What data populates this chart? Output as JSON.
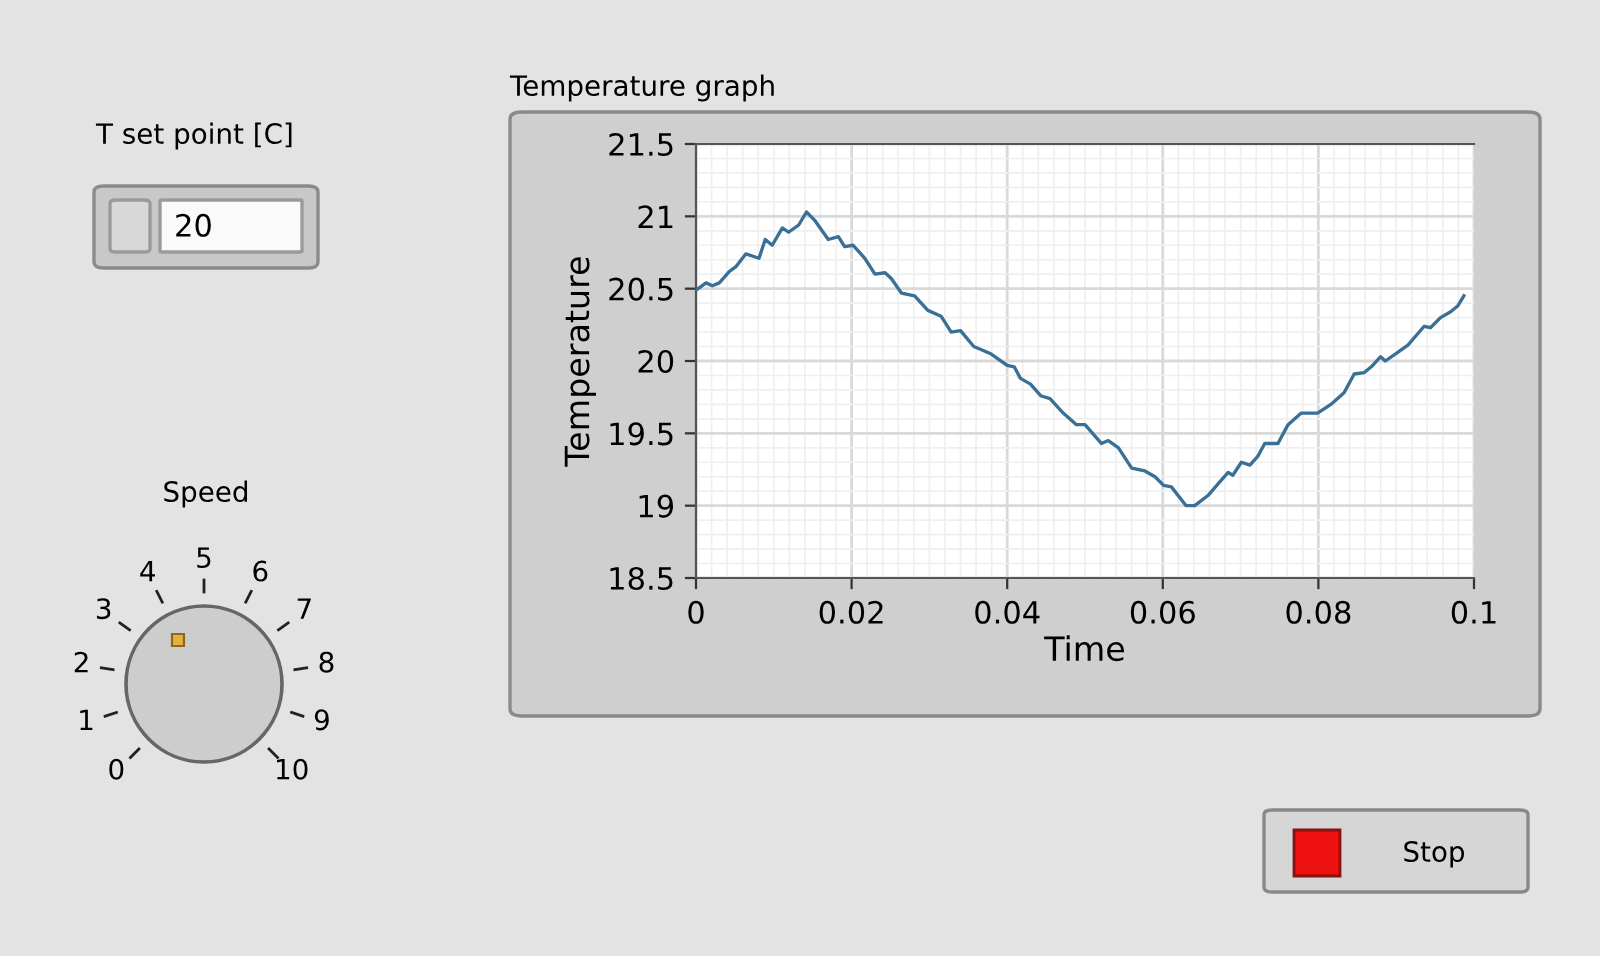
{
  "chart_data": [
    {
      "type": "line",
      "title": "Temperature graph",
      "xlabel": "Time",
      "ylabel": "Temperature",
      "x": [
        0,
        0.0013,
        0.0021,
        0.003,
        0.0043,
        0.0051,
        0.0064,
        0.0081,
        0.0089,
        0.0098,
        0.0111,
        0.0119,
        0.0132,
        0.0142,
        0.0153,
        0.017,
        0.0183,
        0.0191,
        0.0202,
        0.0217,
        0.023,
        0.0243,
        0.0251,
        0.0264,
        0.0281,
        0.0298,
        0.0315,
        0.0328,
        0.034,
        0.0357,
        0.0379,
        0.04,
        0.0409,
        0.0417,
        0.043,
        0.0443,
        0.0455,
        0.0472,
        0.0489,
        0.05,
        0.0521,
        0.053,
        0.0543,
        0.056,
        0.0577,
        0.059,
        0.0601,
        0.0611,
        0.063,
        0.0641,
        0.0658,
        0.0671,
        0.0684,
        0.069,
        0.0701,
        0.0712,
        0.0722,
        0.0731,
        0.0748,
        0.0761,
        0.0778,
        0.0799,
        0.0816,
        0.0833,
        0.0846,
        0.0859,
        0.0868,
        0.088,
        0.0886,
        0.0902,
        0.0915,
        0.0936,
        0.0944,
        0.0957,
        0.097,
        0.0979,
        0.0987
      ],
      "series": [
        {
          "color": "#3a6f96",
          "values": [
            20.49,
            20.54,
            20.52,
            20.54,
            20.62,
            20.65,
            20.74,
            20.71,
            20.84,
            20.8,
            20.92,
            20.89,
            20.94,
            21.03,
            20.97,
            20.84,
            20.86,
            20.79,
            20.8,
            20.71,
            20.6,
            20.61,
            20.57,
            20.47,
            20.45,
            20.35,
            20.31,
            20.2,
            20.21,
            20.1,
            20.05,
            19.97,
            19.96,
            19.88,
            19.84,
            19.76,
            19.74,
            19.64,
            19.56,
            19.56,
            19.43,
            19.45,
            19.4,
            19.26,
            19.24,
            19.2,
            19.14,
            19.13,
            19.0,
            19.0,
            19.07,
            19.15,
            19.23,
            19.21,
            19.3,
            19.28,
            19.34,
            19.43,
            19.43,
            19.56,
            19.64,
            19.64,
            19.7,
            19.78,
            19.91,
            19.92,
            19.96,
            20.03,
            20.0,
            20.06,
            20.11,
            20.24,
            20.23,
            20.3,
            20.34,
            20.38,
            20.45
          ]
        }
      ],
      "xlim": [
        0,
        0.1
      ],
      "ylim": [
        18.5,
        21.5
      ],
      "xticks": [
        0,
        0.02,
        0.04,
        0.06,
        0.08,
        0.1
      ],
      "yticks": [
        18.5,
        19,
        19.5,
        20,
        20.5,
        21,
        21.5
      ],
      "grid": true,
      "line_style": "solid",
      "marker": "none"
    },
    {
      "type": "other",
      "annotations": [
        "T set point [C]",
        "20",
        "Speed",
        "0",
        "1",
        "2",
        "3",
        "4",
        "5",
        "6",
        "7",
        "8",
        "9",
        "10",
        "Stop"
      ]
    }
  ]
}
